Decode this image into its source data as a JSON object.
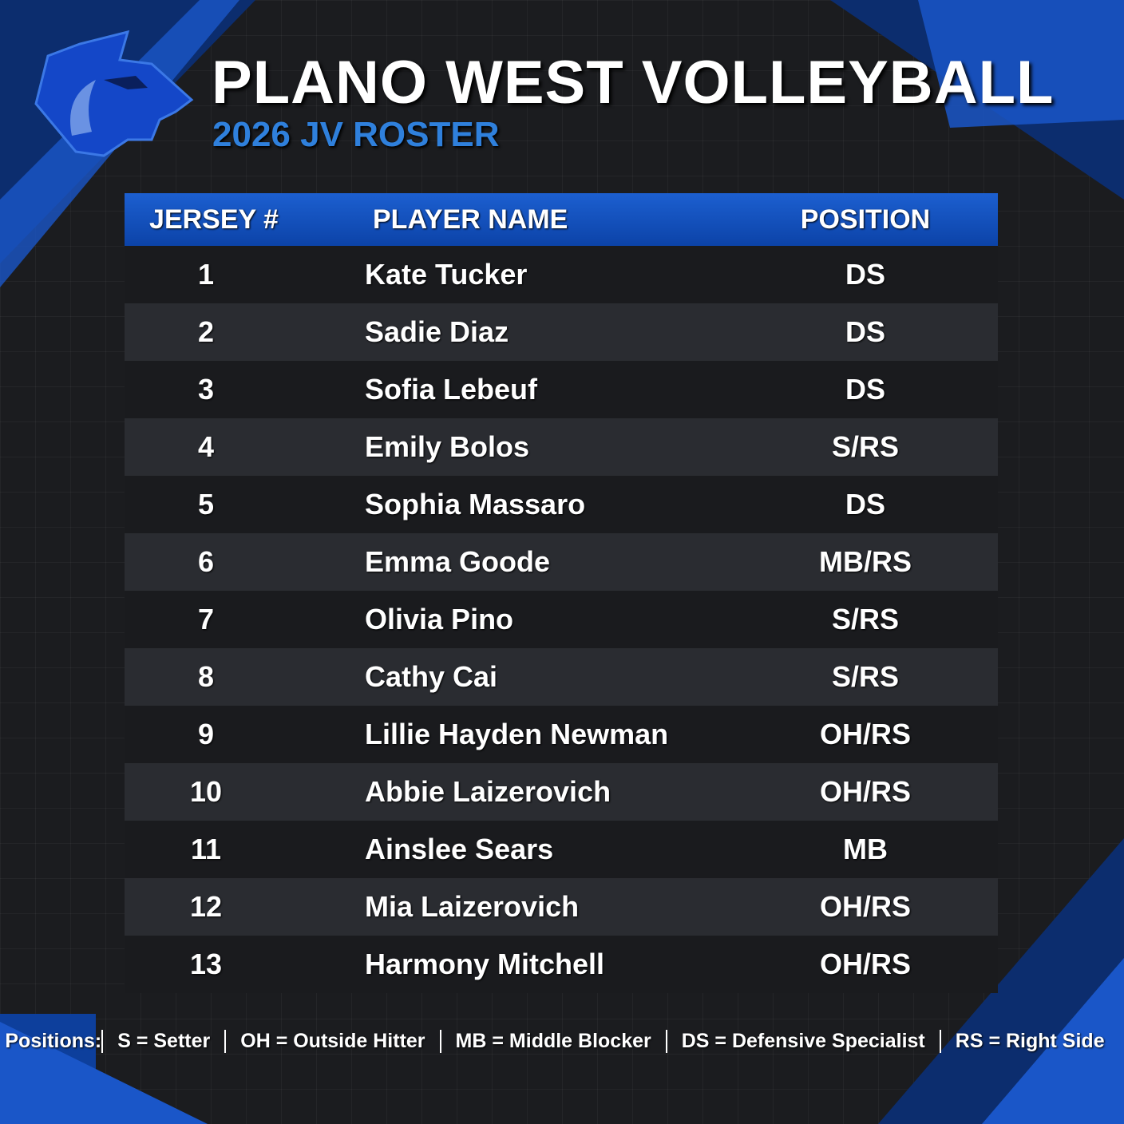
{
  "header": {
    "title": "PLANO WEST VOLLEYBALL",
    "subtitle": "2026 JV ROSTER"
  },
  "table": {
    "columns": [
      "JERSEY #",
      "PLAYER NAME",
      "POSITION"
    ],
    "rows": [
      [
        "1",
        "Kate Tucker",
        "DS"
      ],
      [
        "2",
        "Sadie Diaz",
        "DS"
      ],
      [
        "3",
        "Sofia Lebeuf",
        "DS"
      ],
      [
        "4",
        "Emily Bolos",
        "S/RS"
      ],
      [
        "5",
        "Sophia Massaro",
        "DS"
      ],
      [
        "6",
        "Emma Goode",
        "MB/RS"
      ],
      [
        "7",
        "Olivia Pino",
        "S/RS"
      ],
      [
        "8",
        "Cathy Cai",
        "S/RS"
      ],
      [
        "9",
        "Lillie Hayden Newman",
        "OH/RS"
      ],
      [
        "10",
        "Abbie Laizerovich",
        "OH/RS"
      ],
      [
        "11",
        "Ainslee Sears",
        "MB"
      ],
      [
        "12",
        "Mia Laizerovich",
        "OH/RS"
      ],
      [
        "13",
        "Harmony Mitchell",
        "OH/RS"
      ]
    ]
  },
  "footer": {
    "label": "Positions:",
    "items": [
      "S = Setter",
      "OH = Outside Hitter",
      "MB = Middle Blocker",
      "DS = Defensive Specialist",
      "RS = Right Side"
    ]
  }
}
